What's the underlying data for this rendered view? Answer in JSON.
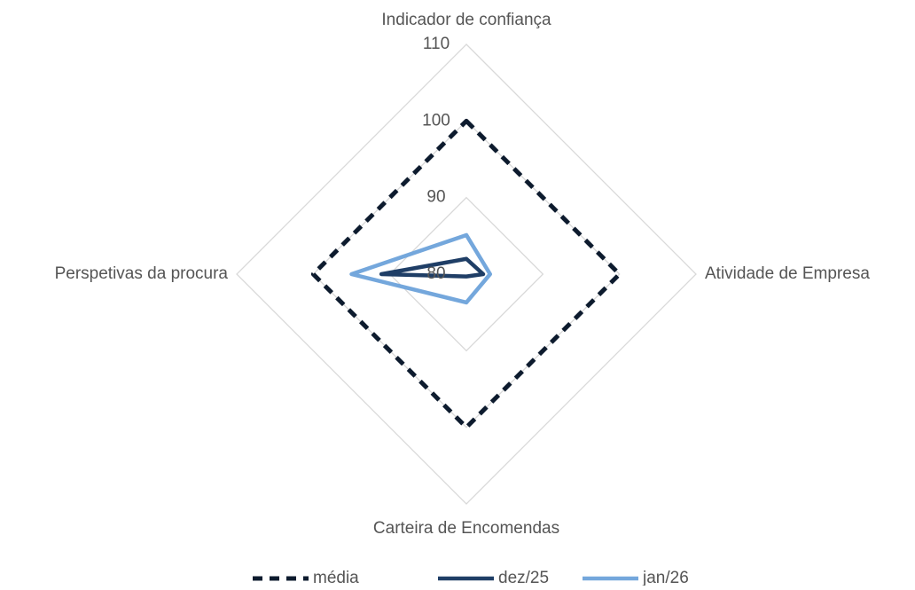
{
  "chart_data": {
    "type": "radar",
    "categories": [
      "Indicador de confiança",
      "Atividade de Empresa",
      "Carteira de Encomendas",
      "Perspetivas da procura"
    ],
    "series": [
      {
        "name": "média",
        "color": "#0d1b2e",
        "dash": true,
        "values": [
          100,
          100,
          100,
          100
        ]
      },
      {
        "name": "dez/25",
        "color": "#1f3e66",
        "dash": false,
        "values": [
          82,
          82.2,
          80.3,
          91.1
        ]
      },
      {
        "name": "jan/26",
        "color": "#74a7dc",
        "dash": false,
        "values": [
          85.1,
          83.1,
          83.7,
          95
        ]
      }
    ],
    "ylim": [
      80,
      110
    ],
    "yticks": [
      80,
      90,
      100,
      110
    ],
    "grid": true,
    "legend": "bottom"
  }
}
